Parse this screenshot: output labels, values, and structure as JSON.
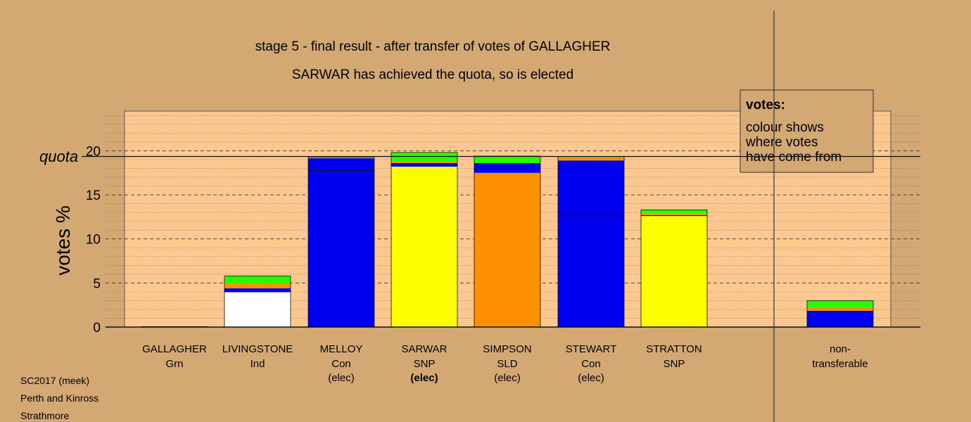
{
  "chart_data": {
    "type": "bar",
    "stacked": true,
    "title": "stage 5 - final result - after transfer of votes of GALLAGHER",
    "subtitle": "SARWAR has achieved the quota, so is elected",
    "ylabel": "votes %",
    "ylim": [
      0,
      24.5
    ],
    "yticks": [
      0,
      5,
      10,
      15,
      20
    ],
    "quota": 19.35,
    "quota_label": "quota",
    "legend": {
      "heading": "votes:",
      "lines": [
        "colour shows",
        "where votes",
        "have come from"
      ],
      "placement": "top-right"
    },
    "colors": {
      "white": "#ffffff",
      "blue": "#0000ee",
      "orange": "#ff9000",
      "green": "#22ff00",
      "yellow": "#ffff00",
      "plot_bg": "#fcc890",
      "page_bg": "#d4a872"
    },
    "candidates": [
      {
        "name": "GALLAGHER",
        "party": "Grn",
        "status": "",
        "bold": false,
        "segments": [
          {
            "color": "#22ff00",
            "value": 0.05
          }
        ]
      },
      {
        "name": "LIVINGSTONE",
        "party": "Ind",
        "status": "",
        "bold": false,
        "segments": [
          {
            "color": "#ffffff",
            "value": 3.95
          },
          {
            "color": "#0000ee",
            "value": 0.45
          },
          {
            "color": "#ff9000",
            "value": 0.6
          },
          {
            "color": "#22ff00",
            "value": 0.8
          }
        ]
      },
      {
        "name": "MELLOY",
        "party": "Con",
        "status": "(elec)",
        "bold": false,
        "split": 17.75,
        "segments": [
          {
            "color": "#0000ee",
            "value": 19.15
          },
          {
            "color": "#ff9000",
            "value": 0.05
          },
          {
            "color": "#22ff00",
            "value": 0.1
          }
        ]
      },
      {
        "name": "SARWAR",
        "party": "SNP",
        "status": "(elec)",
        "bold": true,
        "segments": [
          {
            "color": "#ffff00",
            "value": 18.2
          },
          {
            "color": "#0000ee",
            "value": 0.4
          },
          {
            "color": "#ff9000",
            "value": 0.2
          },
          {
            "color": "#22ff00",
            "value": 1.0
          }
        ]
      },
      {
        "name": "SIMPSON",
        "party": "SLD",
        "status": "(elec)",
        "bold": false,
        "segments": [
          {
            "color": "#ff9000",
            "value": 17.5
          },
          {
            "color": "#0000ee",
            "value": 1.1
          },
          {
            "color": "#22ff00",
            "value": 0.8
          }
        ]
      },
      {
        "name": "STEWART",
        "party": "Con",
        "status": "(elec)",
        "bold": false,
        "split": 12.7,
        "segments": [
          {
            "color": "#0000ee",
            "value": 18.9
          },
          {
            "color": "#ff9000",
            "value": 0.35
          },
          {
            "color": "#22ff00",
            "value": 0.1
          }
        ]
      },
      {
        "name": "STRATTON",
        "party": "SNP",
        "status": "",
        "bold": false,
        "segments": [
          {
            "color": "#ffff00",
            "value": 12.6
          },
          {
            "color": "#0000ee",
            "value": 0.1
          },
          {
            "color": "#ff9000",
            "value": 0.2
          },
          {
            "color": "#22ff00",
            "value": 0.4
          }
        ]
      },
      {
        "name": "non-",
        "party": "transferable",
        "status": "",
        "bold": false,
        "nontransferable": true,
        "segments": [
          {
            "color": "#0000ee",
            "value": 1.85
          },
          {
            "color": "#ff9000",
            "value": 0.4
          },
          {
            "color": "#22ff00",
            "value": 0.75
          }
        ]
      }
    ]
  },
  "footer": {
    "line1": "SC2017 (meek)",
    "line2": "Perth and Kinross",
    "line3": "Strathmore"
  }
}
